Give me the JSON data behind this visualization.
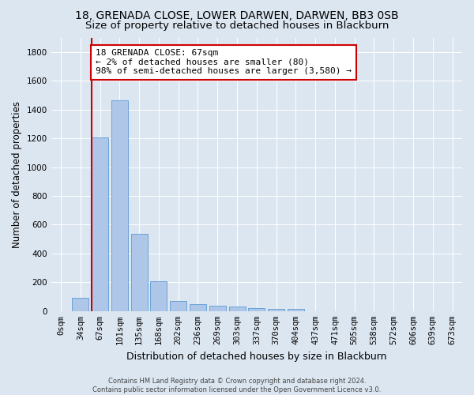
{
  "title": "18, GRENADA CLOSE, LOWER DARWEN, DARWEN, BB3 0SB",
  "subtitle": "Size of property relative to detached houses in Blackburn",
  "xlabel": "Distribution of detached houses by size in Blackburn",
  "ylabel": "Number of detached properties",
  "footer_line1": "Contains HM Land Registry data © Crown copyright and database right 2024.",
  "footer_line2": "Contains public sector information licensed under the Open Government Licence v3.0.",
  "bar_labels": [
    "0sqm",
    "34sqm",
    "67sqm",
    "101sqm",
    "135sqm",
    "168sqm",
    "202sqm",
    "236sqm",
    "269sqm",
    "303sqm",
    "337sqm",
    "370sqm",
    "404sqm",
    "437sqm",
    "471sqm",
    "505sqm",
    "538sqm",
    "572sqm",
    "606sqm",
    "639sqm",
    "673sqm"
  ],
  "bar_values": [
    0,
    90,
    1205,
    1465,
    535,
    205,
    68,
    48,
    35,
    30,
    20,
    13,
    13,
    0,
    0,
    0,
    0,
    0,
    0,
    0,
    0
  ],
  "bar_color": "#aec6e8",
  "bar_edge_color": "#5b9bd5",
  "highlight_bar_index": 2,
  "highlight_color": "#cc0000",
  "annotation_line1": "18 GRENADA CLOSE: 67sqm",
  "annotation_line2": "← 2% of detached houses are smaller (80)",
  "annotation_line3": "98% of semi-detached houses are larger (3,580) →",
  "annotation_box_color": "#cc0000",
  "ylim": [
    0,
    1900
  ],
  "yticks": [
    0,
    200,
    400,
    600,
    800,
    1000,
    1200,
    1400,
    1600,
    1800
  ],
  "background_color": "#dce6f1",
  "plot_bg_color": "#dce6f1",
  "grid_color": "#ffffff",
  "title_fontsize": 10,
  "subtitle_fontsize": 9.5,
  "xlabel_fontsize": 9,
  "ylabel_fontsize": 8.5,
  "tick_fontsize": 7.5,
  "annotation_fontsize": 8,
  "footer_fontsize": 6
}
